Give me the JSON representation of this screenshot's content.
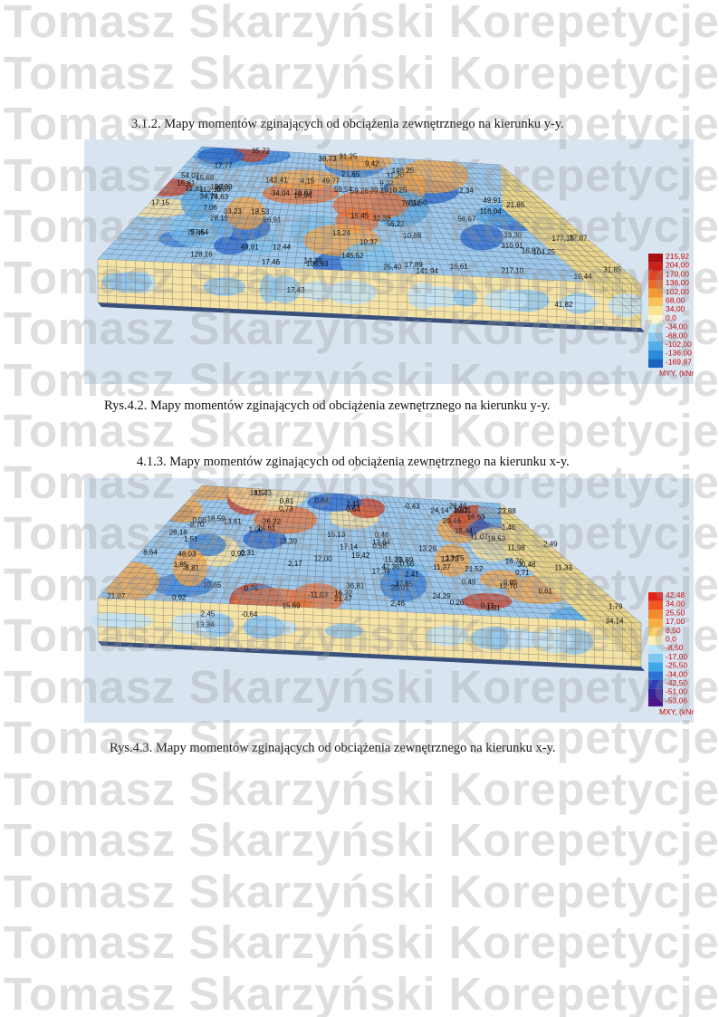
{
  "watermark": {
    "text": "Tomasz Skarzyński Korepetycje©Tomasz",
    "rows": 20
  },
  "section1": {
    "heading": "3.1.2.   Mapy  momentów zginających od obciążenia zewnętrznego na kierunku  y-y.",
    "caption": "Rys.4.2.  Mapy  momentów zginających od obciążenia zewnętrznego na kierunku  y-y.",
    "legend_title": "MYY, (kNm/m)",
    "legend_values": [
      "215,92",
      "204,00",
      "170,00",
      "136,00",
      "102,00",
      "68,00",
      "34,00",
      "0,0",
      "-34,00",
      "-68,00",
      "-102,00",
      "-136,00",
      "-169,87"
    ],
    "labels": [
      "49,91",
      "49,77",
      "38,73",
      "72,45",
      "2,34",
      "39,19",
      "4,15",
      "56,67",
      "49,81",
      "10,44",
      "106,93",
      "116,04",
      "74,63",
      "57,64",
      "141,94",
      "34,04",
      "18,96",
      "177,10",
      "310,91",
      "86,91",
      "128,16",
      "37,87",
      "16,63",
      "56,22",
      "28,12",
      "16,87",
      "32,38",
      "76,34",
      "0,33",
      "14,36",
      "217,10",
      "145,52",
      "59,54",
      "21,86",
      "143,41",
      "31,81",
      "17,43",
      "33,30",
      "9,42",
      "21,65",
      "15,45",
      "18,53",
      "9,32",
      "10,88",
      "59,26",
      "17,15",
      "31,25",
      "148,25",
      "7,06",
      "13,24",
      "31,85",
      "35,72",
      "41,82",
      "104,25",
      "17,89",
      "15,61",
      "10,25",
      "61,50",
      "17,46",
      "31,20",
      "16,61",
      "54,02",
      "16,89",
      "15,68",
      "10,37",
      "25,40",
      "112,10",
      "17,77",
      "33,23",
      "18,10",
      "34,78",
      "12,44"
    ]
  },
  "section2": {
    "heading": "4.1.3.   Mapy  momentów zginających od obciążenia zewnętrznego na kierunku  x-y.",
    "caption": "Rys.4.3. Mapy  momentów zginających od obciążenia zewnętrznego na kierunku  x-y.",
    "legend_title": "MXY, (kNm/m)",
    "legend_values": [
      "42,48",
      "34,00",
      "25,50",
      "17,00",
      "8,50",
      "0,0",
      "-8,50",
      "-17,00",
      "-25,50",
      "-34,00",
      "-42,50",
      "-51,00",
      "-53,06"
    ],
    "labels": [
      "2,17",
      "37,65",
      "28,18",
      "15,13",
      "0,92",
      "19,11",
      "10,65",
      "24,14",
      "12,70",
      "1,46",
      "9,87",
      "0,64",
      "34,14",
      "-0,43",
      "28,46",
      "0,11",
      "0,56",
      "36,81",
      "21,47",
      "2,49",
      "24,29",
      "0,64",
      "13,61",
      "1,01",
      "2,45",
      "12,00",
      "21,07",
      "30,48",
      "-8,81",
      "16,69",
      "11,98",
      "0,58",
      "2,46",
      "20,01",
      "1,85",
      "2,11",
      "26,22",
      "48,03",
      "11,33",
      "0,92",
      "6,85",
      "13,39",
      "0,71",
      "0,49",
      "11,07",
      "19,42",
      "8,64",
      "1,79",
      "16,32",
      "1,51",
      "23,88",
      "-8,70",
      "0,76",
      "18,57",
      "0,26",
      "16,70",
      "18,53",
      "2,41",
      "1,00",
      "42,36",
      "13,34",
      "12,75",
      "-11,03",
      "20,46",
      "13,89",
      "19,44",
      "11,27",
      "0,73",
      "18,59",
      "0,31",
      "0,06",
      "17,34",
      "21,52",
      "0,81",
      "0,46",
      "13,26",
      "-0,64",
      "17,14",
      "11,43",
      "15,69",
      "11,29",
      "13,75",
      "0,61",
      "14,61",
      "12,64"
    ]
  }
}
